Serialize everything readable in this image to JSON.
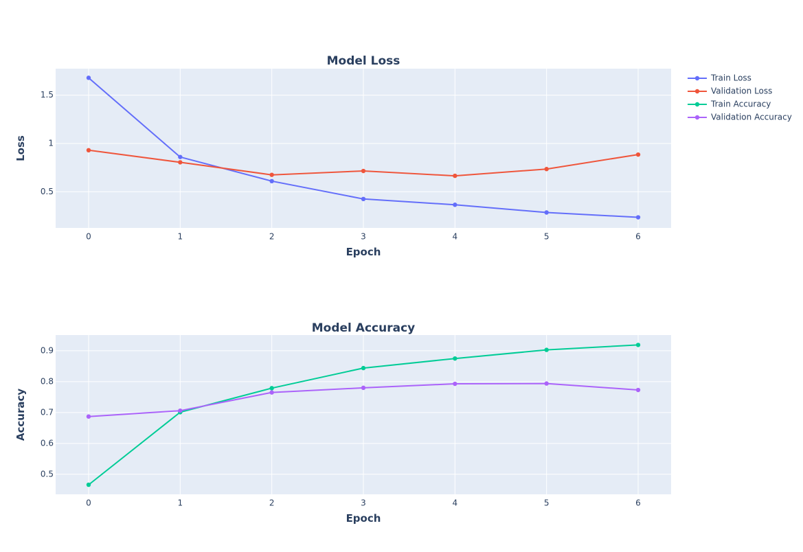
{
  "chart_data": [
    {
      "type": "line",
      "title": "Model Loss",
      "xlabel": "Epoch",
      "ylabel": "Loss",
      "x": [
        0,
        1,
        2,
        3,
        4,
        5,
        6
      ],
      "xlim": [
        -0.36,
        6.36
      ],
      "ylim": [
        0.125,
        1.775
      ],
      "xticks": [
        0,
        1,
        2,
        3,
        4,
        5,
        6
      ],
      "yticks": [
        0.5,
        1,
        1.5
      ],
      "ytick_labels": [
        "0.5",
        "1",
        "1.5"
      ],
      "grid": true,
      "series": [
        {
          "name": "Train Loss",
          "color": "#636efa",
          "values": [
            1.68,
            0.86,
            0.61,
            0.425,
            0.365,
            0.285,
            0.235
          ]
        },
        {
          "name": "Validation Loss",
          "color": "#ef553b",
          "values": [
            0.93,
            0.805,
            0.675,
            0.715,
            0.665,
            0.735,
            0.885
          ]
        }
      ]
    },
    {
      "type": "line",
      "title": "Model Accuracy",
      "xlabel": "Epoch",
      "ylabel": "Accuracy",
      "x": [
        0,
        1,
        2,
        3,
        4,
        5,
        6
      ],
      "xlim": [
        -0.36,
        6.36
      ],
      "ylim": [
        0.435,
        0.951
      ],
      "xticks": [
        0,
        1,
        2,
        3,
        4,
        5,
        6
      ],
      "yticks": [
        0.5,
        0.6,
        0.7,
        0.8,
        0.9
      ],
      "ytick_labels": [
        "0.5",
        "0.6",
        "0.7",
        "0.8",
        "0.9"
      ],
      "grid": true,
      "series": [
        {
          "name": "Train Accuracy",
          "color": "#00cc96",
          "values": [
            0.466,
            0.701,
            0.779,
            0.844,
            0.875,
            0.903,
            0.919
          ]
        },
        {
          "name": "Validation Accuracy",
          "color": "#ab63fa",
          "values": [
            0.687,
            0.706,
            0.765,
            0.78,
            0.793,
            0.794,
            0.773
          ]
        }
      ]
    }
  ],
  "legend": {
    "position": "top-right",
    "items": [
      {
        "label": "Train Loss",
        "color": "#636efa"
      },
      {
        "label": "Validation Loss",
        "color": "#ef553b"
      },
      {
        "label": "Train Accuracy",
        "color": "#00cc96"
      },
      {
        "label": "Validation Accuracy",
        "color": "#ab63fa"
      }
    ]
  },
  "theme": {
    "plot_background": "#e5ecf6",
    "grid_color": "#ffffff",
    "text_color": "#2a3f5f"
  }
}
